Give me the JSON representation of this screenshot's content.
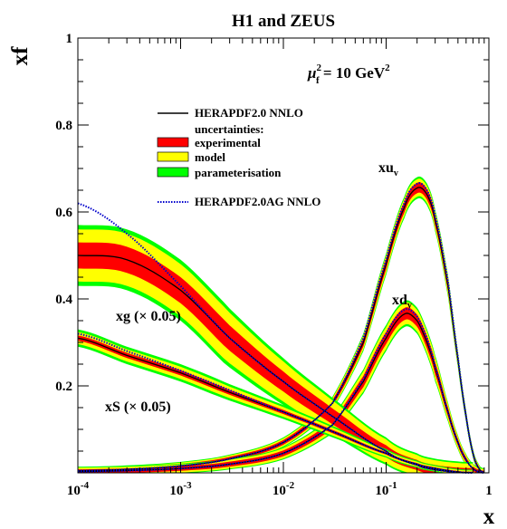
{
  "chart_data": {
    "type": "line",
    "title": "H1 and ZEUS",
    "scale_label": {
      "prefix": "μ",
      "sup": "2",
      "sub": "f",
      "suffix": " = 10 GeV",
      "suffix_sup": "2"
    },
    "xlabel": "x",
    "ylabel": "xf",
    "x_scale": "log",
    "xlim": [
      0.0001,
      1
    ],
    "ylim": [
      0,
      1
    ],
    "x_ticks": [
      {
        "value": 0.0001,
        "base": "10",
        "exp": "-4"
      },
      {
        "value": 0.001,
        "base": "10",
        "exp": "-3"
      },
      {
        "value": 0.01,
        "base": "10",
        "exp": "-2"
      },
      {
        "value": 0.1,
        "base": "10",
        "exp": "-1"
      },
      {
        "value": 1,
        "base": "1",
        "exp": ""
      }
    ],
    "y_ticks": [
      {
        "value": 0.2,
        "label": "0.2"
      },
      {
        "value": 0.4,
        "label": "0.4"
      },
      {
        "value": 0.6,
        "label": "0.6"
      },
      {
        "value": 0.8,
        "label": "0.8"
      },
      {
        "value": 1.0,
        "label": "1"
      }
    ],
    "grid": false,
    "legend": {
      "position": "top-left",
      "entries": [
        {
          "key": "central",
          "text": "HERAPDF2.0 NNLO",
          "style": "line",
          "color": "#000000"
        },
        {
          "key": "uncertainties",
          "text": "uncertainties:",
          "style": "none"
        },
        {
          "key": "experimental",
          "text": "experimental",
          "style": "box",
          "color": "#ff0000"
        },
        {
          "key": "model",
          "text": "model",
          "style": "box",
          "color": "#ffff00"
        },
        {
          "key": "parameterisation",
          "text": "parameterisation",
          "style": "box",
          "color": "#00ff00"
        },
        {
          "key": "ag",
          "text": "HERAPDF2.0AG NNLO",
          "style": "dotted",
          "color": "#0000cc"
        }
      ]
    },
    "colors": {
      "experimental": "#ff0000",
      "model": "#ffff00",
      "parameterisation": "#00ff00",
      "central": "#000000",
      "ag": "#0000cc"
    },
    "series": [
      {
        "id": "xuv",
        "label": {
          "main": "xu",
          "sub": "v"
        },
        "x": [
          0.0001,
          0.0003,
          0.001,
          0.003,
          0.01,
          0.03,
          0.06,
          0.1,
          0.15,
          0.2,
          0.25,
          0.3,
          0.4,
          0.5,
          0.6,
          0.7,
          0.8,
          0.9
        ],
        "central": [
          0.005,
          0.008,
          0.016,
          0.032,
          0.07,
          0.16,
          0.3,
          0.48,
          0.61,
          0.655,
          0.64,
          0.58,
          0.43,
          0.26,
          0.13,
          0.045,
          0.01,
          0.001
        ],
        "ag": [
          0.005,
          0.008,
          0.016,
          0.032,
          0.07,
          0.16,
          0.31,
          0.49,
          0.62,
          0.665,
          0.65,
          0.59,
          0.44,
          0.265,
          0.13,
          0.045,
          0.01,
          0.001
        ],
        "experimental_halfwidth": 0.012,
        "model_halfwidth": 0.02,
        "parameterisation_halfwidth": 0.025
      },
      {
        "id": "xdv",
        "label": {
          "main": "xd",
          "sub": "v"
        },
        "x": [
          0.0001,
          0.0003,
          0.001,
          0.003,
          0.01,
          0.03,
          0.06,
          0.1,
          0.15,
          0.2,
          0.25,
          0.3,
          0.4,
          0.5,
          0.6,
          0.7,
          0.8,
          0.9
        ],
        "central": [
          0.003,
          0.005,
          0.01,
          0.02,
          0.045,
          0.11,
          0.21,
          0.31,
          0.365,
          0.35,
          0.3,
          0.24,
          0.14,
          0.07,
          0.03,
          0.01,
          0.002,
          0.0002
        ],
        "ag": [
          0.003,
          0.005,
          0.01,
          0.02,
          0.045,
          0.11,
          0.215,
          0.32,
          0.375,
          0.36,
          0.31,
          0.245,
          0.14,
          0.07,
          0.03,
          0.01,
          0.002,
          0.0002
        ],
        "experimental_halfwidth": 0.014,
        "model_halfwidth": 0.025,
        "parameterisation_halfwidth": 0.03
      },
      {
        "id": "xg",
        "label": {
          "main": "xg (× 0.05)",
          "sub": ""
        },
        "x": [
          0.0001,
          0.0003,
          0.001,
          0.003,
          0.01,
          0.03,
          0.1,
          0.2,
          0.3,
          0.5,
          0.7
        ],
        "central": [
          0.5,
          0.49,
          0.42,
          0.31,
          0.21,
          0.13,
          0.05,
          0.018,
          0.007,
          0.0015,
          0.0002
        ],
        "ag": [
          0.62,
          0.55,
          0.43,
          0.31,
          0.21,
          0.13,
          0.05,
          0.018,
          0.007,
          0.0015,
          0.0002
        ],
        "experimental_halfwidth": 0.03,
        "model_halfwidth": 0.06,
        "parameterisation_halfwidth": 0.07
      },
      {
        "id": "xs",
        "label": {
          "main": "xS (× 0.05)",
          "sub": ""
        },
        "x": [
          0.0001,
          0.0003,
          0.001,
          0.003,
          0.01,
          0.03,
          0.1,
          0.2,
          0.3,
          0.5,
          0.7
        ],
        "central": [
          0.31,
          0.27,
          0.23,
          0.185,
          0.14,
          0.095,
          0.045,
          0.02,
          0.01,
          0.002,
          0.0003
        ],
        "ag": [
          0.32,
          0.28,
          0.235,
          0.19,
          0.14,
          0.095,
          0.045,
          0.02,
          0.01,
          0.002,
          0.0003
        ],
        "experimental_halfwidth": 0.006,
        "model_halfwidth": 0.014,
        "parameterisation_halfwidth": 0.02
      }
    ]
  }
}
